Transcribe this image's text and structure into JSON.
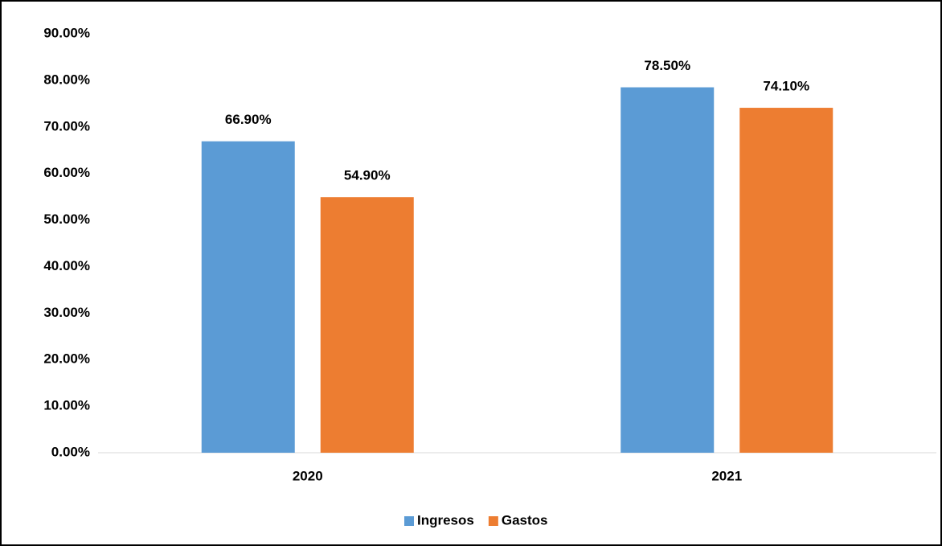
{
  "chart_data": {
    "type": "bar",
    "categories": [
      "2020",
      "2021"
    ],
    "series": [
      {
        "name": "Ingresos",
        "color": "#5b9bd5",
        "values": [
          66.9,
          78.5
        ],
        "value_labels": [
          "66.90%",
          "78.50%"
        ]
      },
      {
        "name": "Gastos",
        "color": "#ed7d31",
        "values": [
          54.9,
          74.1
        ],
        "value_labels": [
          "54.90%",
          "74.10%"
        ]
      }
    ],
    "ylim": [
      0,
      90
    ],
    "yticks": [
      {
        "value": 0,
        "label": "0.00%"
      },
      {
        "value": 10,
        "label": "10.00%"
      },
      {
        "value": 20,
        "label": "20.00%"
      },
      {
        "value": 30,
        "label": "30.00%"
      },
      {
        "value": 40,
        "label": "40.00%"
      },
      {
        "value": 50,
        "label": "50.00%"
      },
      {
        "value": 60,
        "label": "60.00%"
      },
      {
        "value": 70,
        "label": "70.00%"
      },
      {
        "value": 80,
        "label": "80.00%"
      },
      {
        "value": 90,
        "label": "90.00%"
      }
    ],
    "grid": false,
    "legend": "bottom"
  }
}
